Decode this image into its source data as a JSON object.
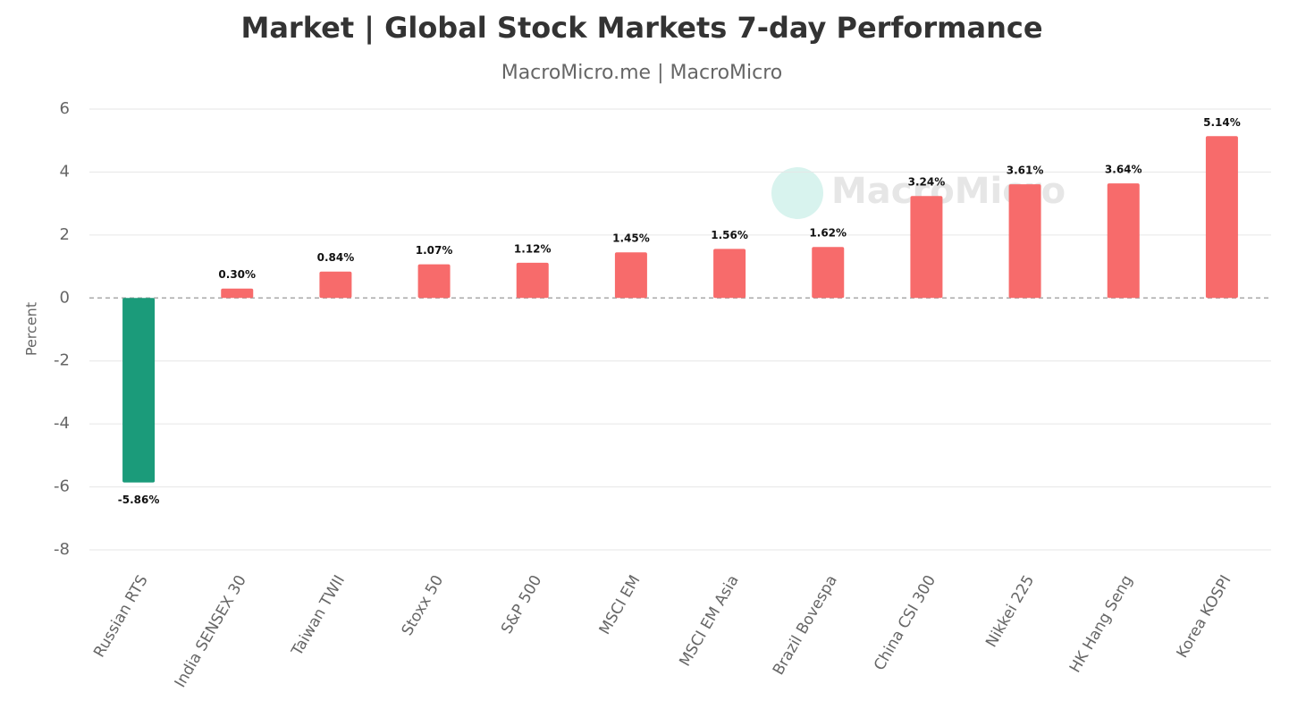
{
  "chart_data": {
    "type": "bar",
    "title": "Market | Global Stock Markets 7-day Performance",
    "subtitle": "MacroMicro.me | MacroMicro",
    "watermark": "MacroMicro",
    "y_label": "Percent",
    "categories": [
      "Russian RTS",
      "India SENSEX 30",
      "Taiwan TWII",
      "Stoxx 50",
      "S&P 500",
      "MSCI EM",
      "MSCI EM Asia",
      "Brazil Bovespa",
      "China CSI 300",
      "Nikkei 225",
      "HK Hang Seng",
      "Korea KOSPI"
    ],
    "values": [
      -5.86,
      0.3,
      0.84,
      1.07,
      1.12,
      1.45,
      1.56,
      1.62,
      3.24,
      3.61,
      3.64,
      5.14
    ],
    "value_labels": [
      "-5.86%",
      "0.30%",
      "0.84%",
      "1.07%",
      "1.12%",
      "1.45%",
      "1.56%",
      "1.62%",
      "3.24%",
      "3.61%",
      "3.64%",
      "5.14%"
    ],
    "color": "#f76b6b",
    "negative_color": "#1b9b7a",
    "ylim": [
      -8,
      6
    ],
    "yticks": [
      -8,
      -6,
      -4,
      -2,
      0,
      2,
      4,
      6
    ],
    "grid": true
  }
}
